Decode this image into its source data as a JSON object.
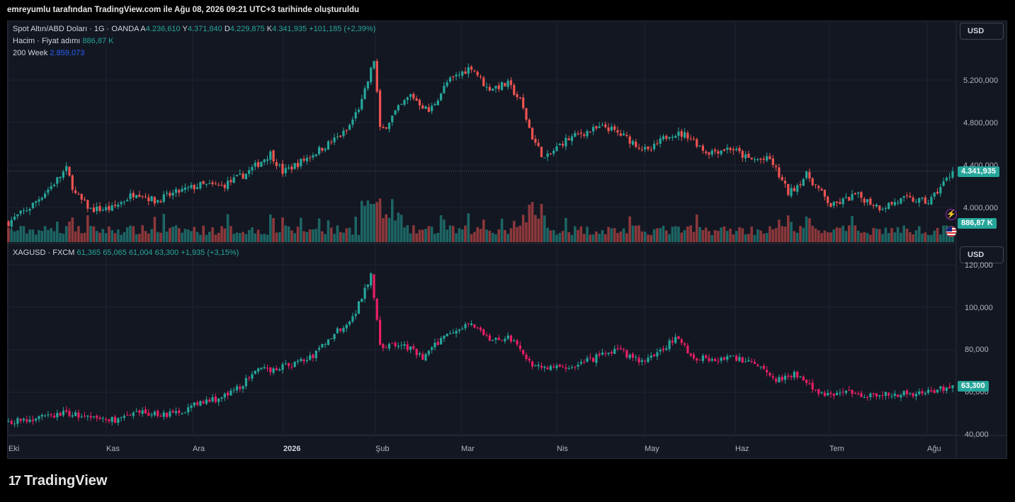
{
  "header": {
    "title": "emreyumlu tarafından TradingView.com ile Ağu 08, 2026 09:21 UTC+3 tarihinde oluşturuldu"
  },
  "brand": {
    "logo_text": "TradingView",
    "logo_mark": "17"
  },
  "colors": {
    "up": "#26a69a",
    "down": "#ef5350",
    "silver_down": "#e91e63",
    "ma": "#2962ff",
    "bg": "#131722"
  },
  "pane1": {
    "symbol": "Spot Altın/ABD Doları · 1G · OANDA",
    "o_label": "A",
    "o": "4.236,610",
    "h_label": "Y",
    "h": "4.371,840",
    "l_label": "D",
    "l": "4.229,875",
    "c_label": "K",
    "c": "4.341,935",
    "change": "+101,185 (+2,39%)",
    "volume_label": "Hacim · Fiyat adımı",
    "volume_value": "886,87 K",
    "ma_label": "200 Week",
    "ma_value": "2.859,073",
    "currency": "USD",
    "last_price_tag": "4.341,935",
    "volume_tag": "886,87 K",
    "y_ticks": [
      "5.200,000",
      "4.800,000",
      "4.400,000",
      "4.000,000"
    ]
  },
  "pane2": {
    "symbol": "XAGUSD · FXCM",
    "o": "61,365",
    "h": "65,065",
    "l": "61,004",
    "c": "63,300",
    "change": "+1,935 (+3,15%)",
    "currency": "USD",
    "last_price_tag": "63,300",
    "y_ticks": [
      "120,000",
      "100,000",
      "80,000",
      "60,000",
      "40,000"
    ]
  },
  "x_axis": [
    "Eki",
    "Kas",
    "Ara",
    "2026",
    "Şub",
    "Mar",
    "Nis",
    "May",
    "Haz",
    "Tem",
    "Ağu"
  ],
  "icons": [
    "lightning-icon",
    "us-flag-icon"
  ],
  "chart_data": [
    {
      "type": "candlestick",
      "title": "Spot Altın/ABD Doları · 1G · OANDA",
      "ylim": [
        3740,
        5500
      ],
      "y_ticks": [
        4000,
        4400,
        4800,
        5200
      ],
      "last_close": 4341.935,
      "x_labels": [
        "Eki",
        "Kas",
        "Ara",
        "2026",
        "Şub",
        "Mar",
        "Nis",
        "May",
        "Haz",
        "Tem",
        "Ağu"
      ],
      "close_path": [
        [
          "2025-10-01",
          3860
        ],
        [
          "2025-10-08",
          4000
        ],
        [
          "2025-10-15",
          4200
        ],
        [
          "2025-10-20",
          4360
        ],
        [
          "2025-10-23",
          4120
        ],
        [
          "2025-10-28",
          3980
        ],
        [
          "2025-11-04",
          3990
        ],
        [
          "2025-11-12",
          4150
        ],
        [
          "2025-11-18",
          4060
        ],
        [
          "2025-11-26",
          4150
        ],
        [
          "2025-12-03",
          4210
        ],
        [
          "2025-12-10",
          4200
        ],
        [
          "2025-12-18",
          4320
        ],
        [
          "2025-12-26",
          4510
        ],
        [
          "2025-12-30",
          4330
        ],
        [
          "2026-01-06",
          4450
        ],
        [
          "2026-01-14",
          4600
        ],
        [
          "2026-01-20",
          4720
        ],
        [
          "2026-01-25",
          5000
        ],
        [
          "2026-01-29",
          5400
        ],
        [
          "2026-01-31",
          4700
        ],
        [
          "2026-02-05",
          4900
        ],
        [
          "2026-02-10",
          5060
        ],
        [
          "2026-02-16",
          4900
        ],
        [
          "2026-02-22",
          5180
        ],
        [
          "2026-03-02",
          5330
        ],
        [
          "2026-03-07",
          5120
        ],
        [
          "2026-03-14",
          5160
        ],
        [
          "2026-03-18",
          5000
        ],
        [
          "2026-03-22",
          4650
        ],
        [
          "2026-03-26",
          4450
        ],
        [
          "2026-04-01",
          4620
        ],
        [
          "2026-04-07",
          4700
        ],
        [
          "2026-04-15",
          4760
        ],
        [
          "2026-04-22",
          4650
        ],
        [
          "2026-04-29",
          4520
        ],
        [
          "2026-05-06",
          4700
        ],
        [
          "2026-05-12",
          4680
        ],
        [
          "2026-05-18",
          4520
        ],
        [
          "2026-05-26",
          4560
        ],
        [
          "2026-06-01",
          4450
        ],
        [
          "2026-06-08",
          4450
        ],
        [
          "2026-06-14",
          4130
        ],
        [
          "2026-06-20",
          4310
        ],
        [
          "2026-06-28",
          4010
        ],
        [
          "2026-07-06",
          4120
        ],
        [
          "2026-07-14",
          4000
        ],
        [
          "2026-07-22",
          4080
        ],
        [
          "2026-07-30",
          4050
        ],
        [
          "2026-08-04",
          4240
        ],
        [
          "2026-08-07",
          4341.935
        ]
      ],
      "volume_last": "886,87 K"
    },
    {
      "type": "candlestick",
      "title": "XAGUSD · FXCM",
      "ylim": [
        40,
        120
      ],
      "y_ticks": [
        40,
        60,
        80,
        100,
        120
      ],
      "last_close": 63.3,
      "close_path": [
        [
          "2025-10-01",
          46.5
        ],
        [
          "2025-10-12",
          47.8
        ],
        [
          "2025-10-20",
          50.5
        ],
        [
          "2025-10-28",
          47.4
        ],
        [
          "2025-11-05",
          47.2
        ],
        [
          "2025-11-14",
          50.2
        ],
        [
          "2025-11-24",
          49.6
        ],
        [
          "2025-12-03",
          55.0
        ],
        [
          "2025-12-12",
          58.5
        ],
        [
          "2025-12-22",
          70.0
        ],
        [
          "2025-12-30",
          72.0
        ],
        [
          "2026-01-08",
          76.0
        ],
        [
          "2026-01-16",
          88.0
        ],
        [
          "2026-01-22",
          95.0
        ],
        [
          "2026-01-28",
          116.0
        ],
        [
          "2026-01-31",
          82.0
        ],
        [
          "2026-02-08",
          82.0
        ],
        [
          "2026-02-14",
          76.0
        ],
        [
          "2026-02-22",
          88.0
        ],
        [
          "2026-03-02",
          93.0
        ],
        [
          "2026-03-08",
          84.0
        ],
        [
          "2026-03-14",
          86.0
        ],
        [
          "2026-03-22",
          73.0
        ],
        [
          "2026-03-30",
          71.0
        ],
        [
          "2026-04-08",
          74.0
        ],
        [
          "2026-04-18",
          80.0
        ],
        [
          "2026-04-28",
          74.0
        ],
        [
          "2026-05-08",
          86.0
        ],
        [
          "2026-05-14",
          76.0
        ],
        [
          "2026-05-24",
          76.0
        ],
        [
          "2026-06-02",
          75.0
        ],
        [
          "2026-06-10",
          66.0
        ],
        [
          "2026-06-16",
          69.0
        ],
        [
          "2026-06-24",
          59.0
        ],
        [
          "2026-07-02",
          60.0
        ],
        [
          "2026-07-14",
          58.5
        ],
        [
          "2026-07-22",
          59.5
        ],
        [
          "2026-07-30",
          60.0
        ],
        [
          "2026-08-07",
          63.3
        ]
      ]
    }
  ]
}
